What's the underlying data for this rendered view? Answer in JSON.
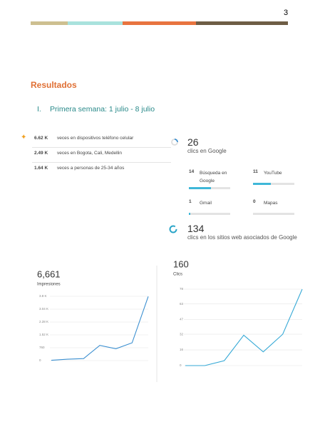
{
  "page_number": "3",
  "section_title": "Resultados",
  "subsection": {
    "number": "I.",
    "title": "Primera semana: 1 julio - 8 julio"
  },
  "stats": [
    {
      "value": "6.62 K",
      "label": "veces en dispositivos teléfono celular"
    },
    {
      "value": "2.49 K",
      "label": "veces en Bogota, Cali, Medellin"
    },
    {
      "value": "1.64 K",
      "label": "veces a personas de 25-34 años"
    }
  ],
  "google_clicks": {
    "value": 26,
    "label": "clics en Google",
    "items": [
      {
        "value": 14,
        "label": "Búsqueda en Google"
      },
      {
        "value": 11,
        "label": "YouTube"
      },
      {
        "value": 1,
        "label": "Gmail"
      },
      {
        "value": 0,
        "label": "Mapas"
      }
    ]
  },
  "partner_clicks": {
    "value": "134",
    "label": "clics en los sitios web asociados de Google"
  },
  "chart_data": [
    {
      "type": "line",
      "title": "6,661",
      "subtitle": "Impresiones",
      "color": "#3b8fd0",
      "values": [
        20,
        80,
        120,
        900,
        700,
        1050,
        3790
      ],
      "ylim": [
        0,
        3800
      ],
      "yticks": [
        0,
        760,
        {
          "value": 1520,
          "label": "1.52 K"
        },
        {
          "value": 2280,
          "label": "2.28 K"
        },
        {
          "value": 3040,
          "label": "3.04 K"
        },
        {
          "value": 3800,
          "label": "3.8 K"
        }
      ],
      "grid": true
    },
    {
      "type": "line",
      "title": "160",
      "subtitle": "Clics",
      "color": "#36a9d6",
      "values": [
        0,
        0,
        5,
        31,
        14,
        32,
        78
      ],
      "ylim": [
        0,
        78
      ],
      "yticks": [
        0,
        16,
        32,
        47,
        63,
        78
      ],
      "grid": true
    }
  ]
}
